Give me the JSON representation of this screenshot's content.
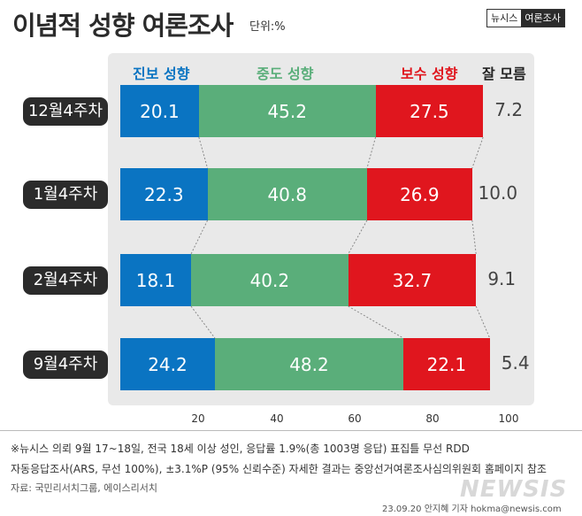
{
  "header": {
    "title": "이념적 성향 여론조사",
    "unit": "단위:%",
    "logo_left": "뉴시스",
    "logo_right": "여론조사"
  },
  "colors": {
    "progressive": "#0a74c2",
    "moderate": "#5aae7a",
    "conservative": "#e0161e",
    "unknown": "#444444"
  },
  "chart_data": {
    "type": "bar",
    "stacked": true,
    "orientation": "horizontal",
    "categories": [
      "12월4주차",
      "1월4주차",
      "2월4주차",
      "9월4주차"
    ],
    "series": [
      {
        "name": "진보 성향",
        "values": [
          20.1,
          22.3,
          18.1,
          24.2
        ]
      },
      {
        "name": "중도 성향",
        "values": [
          45.2,
          40.8,
          40.2,
          48.2
        ]
      },
      {
        "name": "보수 성향",
        "values": [
          27.5,
          26.9,
          32.7,
          22.1
        ]
      },
      {
        "name": "잘 모름",
        "values": [
          7.2,
          10.0,
          9.1,
          5.4
        ]
      }
    ],
    "value_labels": [
      [
        "20.1",
        "45.2",
        "27.5",
        "7.2"
      ],
      [
        "22.3",
        "40.8",
        "26.9",
        "10.0"
      ],
      [
        "18.1",
        "40.2",
        "32.7",
        "9.1"
      ],
      [
        "24.2",
        "48.2",
        "22.1",
        "5.4"
      ]
    ],
    "xlim": [
      0,
      100
    ],
    "xticks": [
      "20",
      "40",
      "60",
      "80",
      "100"
    ],
    "legend_position": "top"
  },
  "footer": {
    "line1": "※뉴시스 의뢰 9월 17~18일, 전국 18세 이상 성인, 응답률 1.9%(총 1003명 응답) 표집틀 무선 RDD",
    "line2": "자동응답조사(ARS, 무선 100%), ±3.1%P (95% 신뢰수준) 자세한 결과는 중앙선거여론조사심의위원회 홈페이지 참조",
    "line3": "자료: 국민리서치그룹, 에이스리서치",
    "credit": "23.09.20 안지혜 기자 hokma@newsis.com",
    "watermark": "NEWSIS"
  }
}
